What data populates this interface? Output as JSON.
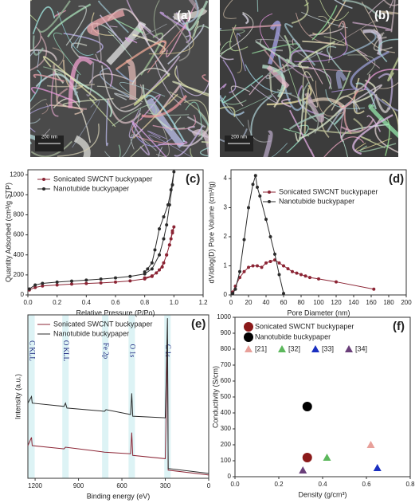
{
  "images": [
    {
      "label": "(a)",
      "scale_bar": "200 nm"
    },
    {
      "label": "(b)",
      "scale_bar": "200 nm"
    }
  ],
  "chart_data": [
    {
      "type": "line",
      "panel_label": "(c)",
      "x_label": "Relative Pressure (P/Po)",
      "y_label": "Quantity Adsorbed (cm³/g STP)",
      "xlim": [
        0,
        1.2
      ],
      "ylim": [
        0,
        1250
      ],
      "xticks": [
        {
          "value": 0,
          "label": "0.0"
        },
        0.2,
        0.4,
        0.6,
        0.8,
        {
          "value": 1,
          "label": "1.0"
        },
        1.2
      ],
      "yticks": [
        0,
        200,
        400,
        600,
        800,
        1000,
        1200
      ],
      "series": [
        {
          "name": "Sonicated SWCNT buckypaper",
          "color": "#8b2434",
          "x": [
            0.01,
            0.05,
            0.1,
            0.2,
            0.3,
            0.4,
            0.5,
            0.6,
            0.7,
            0.8,
            0.85,
            0.9,
            0.93,
            0.95,
            0.97,
            0.98,
            0.99,
            1.0,
            0.99,
            0.97,
            0.95,
            0.92,
            0.88,
            0.85,
            0.8
          ],
          "values": [
            50,
            75,
            90,
            100,
            108,
            114,
            120,
            128,
            140,
            160,
            185,
            250,
            320,
            400,
            500,
            560,
            620,
            680,
            640,
            500,
            400,
            280,
            220,
            190,
            170
          ]
        },
        {
          "name": "Nanotubide buckypaper",
          "color": "#2b2b2b",
          "x": [
            0.01,
            0.05,
            0.1,
            0.2,
            0.3,
            0.4,
            0.5,
            0.6,
            0.7,
            0.8,
            0.85,
            0.9,
            0.93,
            0.95,
            0.97,
            0.99,
            1.0,
            0.98,
            0.96,
            0.93,
            0.9,
            0.87,
            0.85,
            0.82,
            0.8
          ],
          "values": [
            60,
            100,
            115,
            128,
            138,
            148,
            158,
            170,
            185,
            210,
            260,
            400,
            560,
            700,
            900,
            1100,
            1230,
            1050,
            900,
            780,
            660,
            450,
            320,
            260,
            230
          ]
        }
      ],
      "legend": "upper-left"
    },
    {
      "type": "line",
      "panel_label": "(d)",
      "x_label": "Pore Diameter (nm)",
      "y_label": "dV/dlog(D) Pore Volume (cm³/g)",
      "xlim": [
        0,
        200
      ],
      "ylim": [
        0,
        4.3
      ],
      "xticks": [
        0,
        20,
        40,
        60,
        80,
        100,
        120,
        140,
        160,
        180,
        200
      ],
      "yticks": [
        0,
        1,
        2,
        3,
        4
      ],
      "series": [
        {
          "name": "Sonicated SWCNT buckypaper",
          "color": "#8b2434",
          "x": [
            2,
            5,
            10,
            15,
            20,
            25,
            30,
            35,
            40,
            45,
            50,
            55,
            60,
            65,
            70,
            75,
            80,
            85,
            90,
            100,
            120,
            163
          ],
          "values": [
            0.1,
            0.3,
            0.6,
            0.8,
            0.95,
            1.0,
            1.0,
            0.95,
            1.1,
            1.15,
            1.2,
            1.1,
            1.0,
            0.9,
            0.8,
            0.75,
            0.7,
            0.65,
            0.6,
            0.55,
            0.45,
            0.2
          ]
        },
        {
          "name": "Nanotubide buckypaper",
          "color": "#2b2b2b",
          "x": [
            2,
            5,
            10,
            15,
            20,
            25,
            28,
            30,
            33,
            40,
            45,
            50,
            55,
            60
          ],
          "values": [
            0.05,
            0.2,
            0.8,
            1.9,
            3.0,
            3.8,
            4.1,
            3.7,
            3.4,
            2.6,
            2.0,
            1.4,
            0.7,
            0.05
          ]
        }
      ],
      "legend": "upper-right"
    },
    {
      "type": "line",
      "panel_label": "(e)",
      "x_label": "Binding energy (eV)",
      "y_label": "Intensity (a.u.)",
      "xlim": [
        1250,
        0
      ],
      "ylim": [
        0,
        100
      ],
      "xticks": [
        1200,
        900,
        600,
        300,
        0
      ],
      "peaks": [
        {
          "label": "C KLL",
          "x": 1225
        },
        {
          "label": "O KLL",
          "x": 990
        },
        {
          "label": "Fe 2p",
          "x": 715
        },
        {
          "label": "O 1s",
          "x": 532
        },
        {
          "label": "C 1s",
          "x": 285
        }
      ],
      "series": [
        {
          "name": "Sonicated SWCNT buckypaper",
          "color": "#8b2434",
          "x": [
            1250,
            1225,
            1220,
            1000,
            990,
            720,
            540,
            532,
            525,
            300,
            285,
            280,
            0
          ],
          "values": [
            20,
            25,
            20,
            18,
            19,
            16,
            15,
            28,
            14,
            12,
            85,
            5,
            2
          ]
        },
        {
          "name": "Nanotubide buckypaper",
          "color": "#2b2b2b",
          "x": [
            1250,
            1225,
            1220,
            1000,
            990,
            980,
            720,
            710,
            540,
            532,
            525,
            300,
            285,
            280,
            0
          ],
          "values": [
            46,
            50,
            46,
            44,
            46,
            43,
            41,
            42,
            39,
            52,
            38,
            37,
            98,
            6,
            3
          ]
        }
      ],
      "legend": "upper-left"
    },
    {
      "type": "scatter",
      "panel_label": "(f)",
      "x_label": "Density (g/cm³)",
      "y_label": "Conductivity (S/cm)",
      "xlim": [
        0,
        0.8
      ],
      "ylim": [
        0,
        1000
      ],
      "xticks": [
        {
          "value": 0,
          "label": "0.0"
        },
        0.2,
        0.4,
        0.6,
        0.8
      ],
      "yticks": [
        0,
        100,
        200,
        300,
        400,
        500,
        600,
        700,
        800,
        900,
        1000
      ],
      "series": [
        {
          "name": "Sonicated SWCNT buckypaper",
          "color": "#8b1a1a",
          "marker": "circle",
          "x": [
            0.33
          ],
          "values": [
            120
          ]
        },
        {
          "name": "Nanotubide buckypaper",
          "color": "#000000",
          "marker": "circle",
          "x": [
            0.33
          ],
          "values": [
            440
          ]
        },
        {
          "name": "[21]",
          "color": "#e8a09a",
          "marker": "triangle",
          "x": [
            0.62
          ],
          "values": [
            200
          ]
        },
        {
          "name": "[32]",
          "color": "#5cb85c",
          "marker": "triangle",
          "x": [
            0.42
          ],
          "values": [
            120
          ]
        },
        {
          "name": "[33]",
          "color": "#1a2fc0",
          "marker": "triangle",
          "x": [
            0.65
          ],
          "values": [
            55
          ]
        },
        {
          "name": "[34]",
          "color": "#6a3f7a",
          "marker": "triangle",
          "x": [
            0.31
          ],
          "values": [
            40
          ]
        }
      ],
      "legend": "upper-left"
    }
  ]
}
